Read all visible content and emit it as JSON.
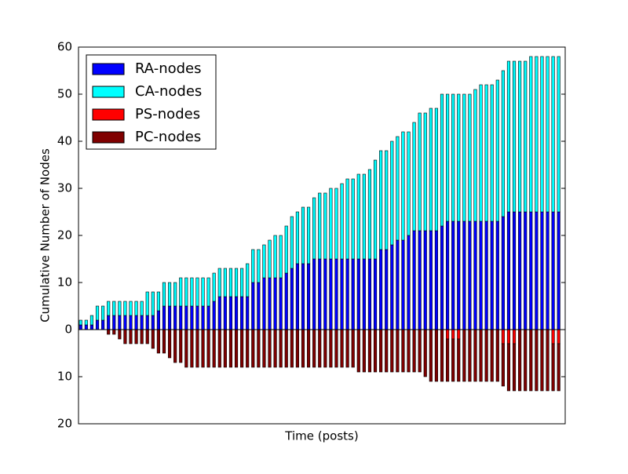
{
  "chart_data": {
    "type": "stacked-bar",
    "xlabel": "Time (posts)",
    "ylabel": "Cumulative Number of Nodes",
    "categories": [
      null,
      null,
      null,
      null,
      null,
      null,
      null,
      null,
      null,
      null,
      null,
      null,
      null,
      null,
      null,
      null,
      null,
      null,
      null,
      null,
      null,
      null,
      null,
      null,
      null,
      null,
      null,
      null,
      null,
      null,
      null,
      null,
      null,
      null,
      null,
      null,
      null,
      null,
      null,
      null,
      null,
      null,
      null,
      null,
      null,
      null,
      null,
      null,
      null,
      null,
      null,
      null,
      null,
      null,
      null,
      null,
      null,
      null,
      null,
      null,
      null,
      null,
      null,
      null,
      null,
      null,
      null,
      null,
      null,
      null,
      null,
      null,
      null,
      null,
      null,
      null,
      null,
      null,
      null,
      null,
      null,
      null,
      null,
      null,
      null,
      null,
      null
    ],
    "series": [
      {
        "name": "RA-nodes",
        "color": "#0000ff",
        "values": [
          1,
          1,
          1,
          2,
          2,
          3,
          3,
          3,
          3,
          3,
          3,
          3,
          3,
          3,
          4,
          5,
          5,
          5,
          5,
          5,
          5,
          5,
          5,
          5,
          6,
          7,
          7,
          7,
          7,
          7,
          7,
          10,
          10,
          11,
          11,
          11,
          11,
          12,
          13,
          14,
          14,
          14,
          15,
          15,
          15,
          15,
          15,
          15,
          15,
          15,
          15,
          15,
          15,
          15,
          17,
          17,
          18,
          19,
          19,
          20,
          21,
          21,
          21,
          21,
          21,
          22,
          23,
          23,
          23,
          23,
          23,
          23,
          23,
          23,
          23,
          23,
          24,
          25,
          25,
          25,
          25,
          25,
          25,
          25,
          25,
          25,
          25
        ]
      },
      {
        "name": "CA-nodes",
        "color": "#00ffff",
        "values": [
          1,
          1,
          2,
          3,
          3,
          3,
          3,
          3,
          3,
          3,
          3,
          3,
          5,
          5,
          4,
          5,
          5,
          5,
          6,
          6,
          6,
          6,
          6,
          6,
          6,
          6,
          6,
          6,
          6,
          6,
          7,
          7,
          7,
          7,
          8,
          9,
          9,
          10,
          11,
          11,
          12,
          12,
          13,
          14,
          14,
          15,
          15,
          16,
          17,
          17,
          18,
          18,
          19,
          21,
          21,
          21,
          22,
          22,
          23,
          22,
          23,
          25,
          25,
          26,
          26,
          28,
          27,
          27,
          27,
          27,
          27,
          28,
          29,
          29,
          29,
          30,
          31,
          32,
          32,
          32,
          32,
          33,
          33,
          33,
          33,
          33,
          33
        ]
      },
      {
        "name": "PS-nodes",
        "color": "#ff0000",
        "values": [
          0,
          0,
          0,
          0,
          0,
          0,
          0,
          0,
          0,
          0,
          0,
          0,
          0,
          0,
          0,
          0,
          0,
          0,
          0,
          0,
          0,
          0,
          0,
          0,
          0,
          0,
          0,
          0,
          0,
          0,
          0,
          0,
          0,
          0,
          0,
          0,
          0,
          0,
          0,
          0,
          0,
          0,
          0,
          0,
          0,
          0,
          0,
          0,
          0,
          0,
          0,
          0,
          0,
          0,
          0,
          0,
          0,
          0,
          0,
          0,
          0,
          0,
          0,
          0,
          0,
          0,
          -2,
          -2,
          -2,
          0,
          0,
          0,
          0,
          0,
          0,
          0,
          -3,
          -3,
          -3,
          0,
          0,
          0,
          0,
          0,
          0,
          -3,
          -3
        ]
      },
      {
        "name": "PC-nodes",
        "color": "#800000",
        "values": [
          0,
          0,
          0,
          0,
          0,
          -1,
          -1,
          -2,
          -3,
          -3,
          -3,
          -3,
          -3,
          -4,
          -5,
          -5,
          -6,
          -7,
          -7,
          -8,
          -8,
          -8,
          -8,
          -8,
          -8,
          -8,
          -8,
          -8,
          -8,
          -8,
          -8,
          -8,
          -8,
          -8,
          -8,
          -8,
          -8,
          -8,
          -8,
          -8,
          -8,
          -8,
          -8,
          -8,
          -8,
          -8,
          -8,
          -8,
          -8,
          -8,
          -9,
          -9,
          -9,
          -9,
          -9,
          -9,
          -9,
          -9,
          -9,
          -9,
          -9,
          -9,
          -10,
          -11,
          -11,
          -11,
          -9,
          -9,
          -9,
          -11,
          -11,
          -11,
          -11,
          -11,
          -11,
          -11,
          -9,
          -10,
          -10,
          -13,
          -13,
          -13,
          -13,
          -13,
          -13,
          -10,
          -10
        ]
      }
    ],
    "ylim": [
      -20,
      60
    ],
    "yticks": [
      {
        "value": -20,
        "label": "20"
      },
      {
        "value": -10,
        "label": "10"
      },
      0,
      10,
      20,
      30,
      40,
      50,
      60
    ],
    "legend": "upper left"
  }
}
